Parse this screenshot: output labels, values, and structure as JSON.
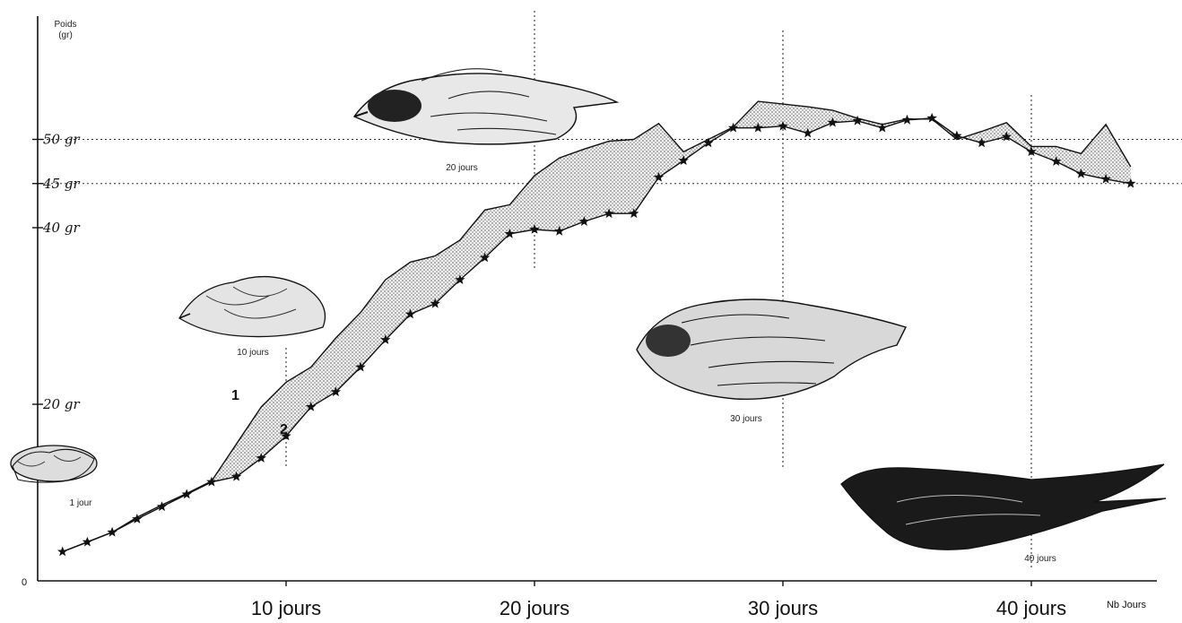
{
  "chart_data": {
    "type": "line",
    "ylabel": "Poids\n(gr)",
    "xlabel": "Nb Jours",
    "xlim": [
      0,
      45.5
    ],
    "ylim": [
      0,
      60
    ],
    "x_ticks": [
      {
        "value": 10,
        "label": "10 jours"
      },
      {
        "value": 20,
        "label": "20 jours"
      },
      {
        "value": 30,
        "label": "30 jours"
      },
      {
        "value": 40,
        "label": "40 jours"
      }
    ],
    "y_ticks": [
      {
        "value": 0,
        "label": "0"
      },
      {
        "value": 20,
        "label": "20 gr"
      },
      {
        "value": 40,
        "label": "40 gr"
      },
      {
        "value": 45,
        "label": "45 gr"
      },
      {
        "value": 50,
        "label": "50 gr"
      }
    ],
    "series": [
      {
        "name": "1",
        "x": [
          1,
          2,
          3,
          4,
          5,
          6,
          7,
          8,
          9,
          10,
          11,
          12,
          13,
          14,
          15,
          16,
          17,
          18,
          19,
          20,
          21,
          22,
          23,
          24,
          25,
          26,
          27,
          28,
          29,
          30,
          31,
          32,
          33,
          34,
          35,
          36,
          37,
          38,
          39,
          40,
          41,
          42,
          43,
          44
        ],
        "values": [
          3.3,
          4.4,
          5.5,
          7.2,
          8.6,
          9.9,
          11.3,
          15.5,
          19.7,
          22.5,
          24.2,
          27.5,
          30.4,
          34.1,
          36.1,
          36.8,
          38.6,
          42.0,
          42.6,
          45.9,
          47.9,
          48.9,
          49.8,
          50.0,
          51.8,
          48.6,
          50.0,
          51.4,
          54.3,
          54.0,
          53.7,
          53.3,
          52.4,
          51.7,
          52.3,
          52.3,
          50.0,
          50.9,
          51.9,
          49.2,
          49.2,
          48.4,
          51.7,
          46.9
        ]
      },
      {
        "name": "2",
        "x": [
          1,
          2,
          3,
          4,
          5,
          6,
          7,
          8,
          9,
          10,
          11,
          12,
          13,
          14,
          15,
          16,
          17,
          18,
          19,
          20,
          21,
          22,
          23,
          24,
          25,
          26,
          27,
          28,
          29,
          30,
          31,
          32,
          33,
          34,
          35,
          36,
          37,
          38,
          39,
          40,
          41,
          42,
          43,
          44
        ],
        "values": [
          3.3,
          4.4,
          5.5,
          7.0,
          8.4,
          9.8,
          11.2,
          11.8,
          13.9,
          16.4,
          19.7,
          21.4,
          24.2,
          27.3,
          30.2,
          31.4,
          34.1,
          36.6,
          39.3,
          39.8,
          39.6,
          40.7,
          41.6,
          41.6,
          45.7,
          47.6,
          49.6,
          51.3,
          51.3,
          51.5,
          50.7,
          51.9,
          52.1,
          51.3,
          52.2,
          52.4,
          50.4,
          49.6,
          50.3,
          48.6,
          47.5,
          46.1,
          45.5,
          45.0
        ]
      }
    ],
    "annotations": [
      "1 jour",
      "10 jours",
      "20 jours",
      "30 jours",
      "40 jours"
    ],
    "grid": "dotted reference lines at y=45, y=50 and x=10, 20, 30, 40"
  }
}
